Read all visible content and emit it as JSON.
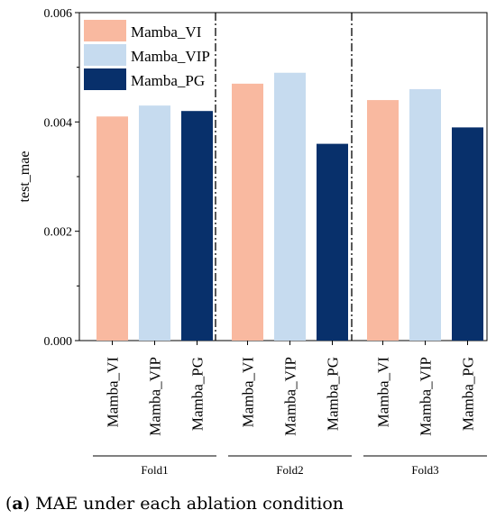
{
  "caption": {
    "label": "a",
    "text": "MAE under each ablation condition"
  },
  "chart_data": {
    "type": "bar",
    "ylabel": "test_mae",
    "ylim": [
      0,
      0.006
    ],
    "yticks": [
      "0.000",
      "0.002",
      "0.004",
      "0.006"
    ],
    "groups": [
      "Fold1",
      "Fold2",
      "Fold3"
    ],
    "categories": [
      "Mamba_VI",
      "Mamba_VIP",
      "Mamba_PG"
    ],
    "legend_position": "top-left",
    "series": [
      {
        "name": "Mamba_VI",
        "color": "#F9B9A0",
        "values": [
          0.0041,
          0.0047,
          0.0044
        ]
      },
      {
        "name": "Mamba_VIP",
        "color": "#C6DBEF",
        "values": [
          0.0043,
          0.0049,
          0.0046
        ]
      },
      {
        "name": "Mamba_PG",
        "color": "#08306B",
        "values": [
          0.0042,
          0.0036,
          0.0039
        ]
      }
    ]
  }
}
